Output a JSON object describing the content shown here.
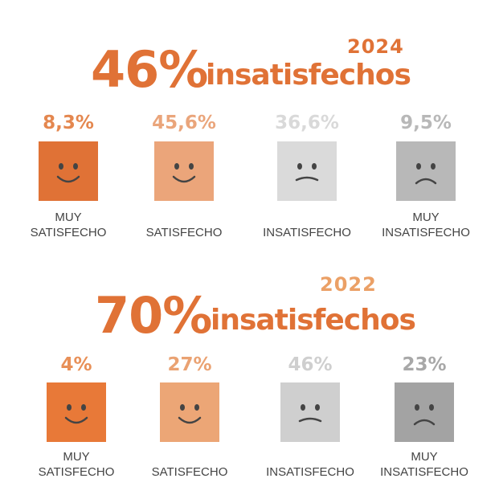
{
  "sections": [
    {
      "year": "2024",
      "headline_value": "46%",
      "headline_text": "insatisfechos",
      "year_color": "#e07236",
      "items": [
        {
          "pct": "8,3%",
          "label_1": "MUY",
          "label_2": "SATISFECHO",
          "face": "smile-icon",
          "box_color": "#e07236",
          "pct_color": "#e4874f"
        },
        {
          "pct": "45,6%",
          "label_1": "",
          "label_2": "SATISFECHO",
          "face": "smile-icon",
          "box_color": "#eba57a",
          "pct_color": "#eaa57b"
        },
        {
          "pct": "36,6%",
          "label_1": "",
          "label_2": "INSATISFECHO",
          "face": "frown-icon",
          "box_color": "#dadada",
          "pct_color": "#d9d9d9"
        },
        {
          "pct": "9,5%",
          "label_1": "MUY",
          "label_2": "INSATISFECHO",
          "face": "frown-icon",
          "box_color": "#b8b8b8",
          "pct_color": "#b8b8b8"
        }
      ]
    },
    {
      "year": "2022",
      "headline_value": "70%",
      "headline_text": "insatisfechos",
      "year_color": "#eba066",
      "items": [
        {
          "pct": "4%",
          "label_1": "MUY",
          "label_2": "SATISFECHO",
          "face": "smile-icon",
          "box_color": "#e87938",
          "pct_color": "#e89058"
        },
        {
          "pct": "27%",
          "label_1": "",
          "label_2": "SATISFECHO",
          "face": "smile-icon",
          "box_color": "#eca676",
          "pct_color": "#eaa272"
        },
        {
          "pct": "46%",
          "label_1": "",
          "label_2": "INSATISFECHO",
          "face": "frown-icon",
          "box_color": "#cfcfcf",
          "pct_color": "#cfcfcf"
        },
        {
          "pct": "23%",
          "label_1": "MUY",
          "label_2": "INSATISFECHO",
          "face": "frown-icon",
          "box_color": "#a3a3a3",
          "pct_color": "#a8a8a8"
        }
      ]
    }
  ],
  "chart_data": [
    {
      "type": "table",
      "title": "46% insatisfechos",
      "subtitle": "2024",
      "categories": [
        "MUY SATISFECHO",
        "SATISFECHO",
        "INSATISFECHO",
        "MUY INSATISFECHO"
      ],
      "values": [
        8.3,
        45.6,
        36.6,
        9.5
      ]
    },
    {
      "type": "table",
      "title": "70% insatisfechos",
      "subtitle": "2022",
      "categories": [
        "MUY SATISFECHO",
        "SATISFECHO",
        "INSATISFECHO",
        "MUY INSATISFECHO"
      ],
      "values": [
        4,
        27,
        46,
        23
      ]
    }
  ]
}
